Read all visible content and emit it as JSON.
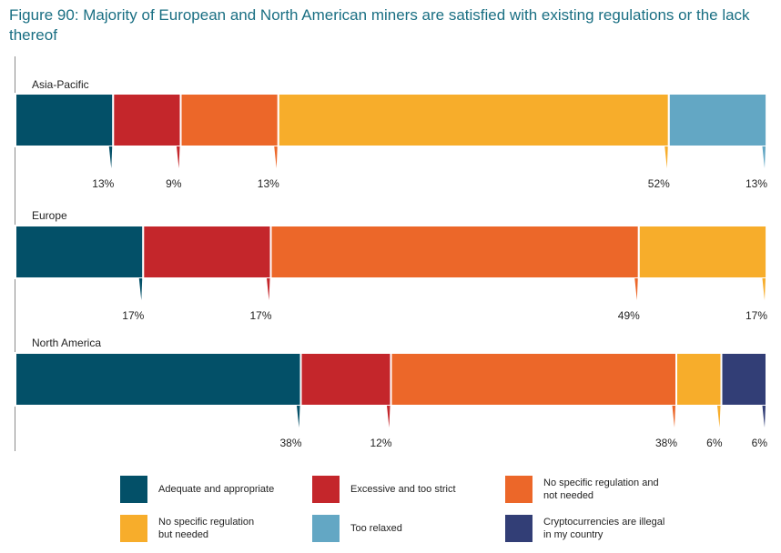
{
  "title": "Figure 90: Majority of European and North American miners are satisfied with existing regulations or the lack thereof",
  "chart_data": {
    "type": "bar",
    "orientation": "horizontal",
    "stacked": true,
    "xlim": [
      0,
      100
    ],
    "categories": [
      "Asia-Pacific",
      "Europe",
      "North America"
    ],
    "series": [
      {
        "name": "Adequate and appropriate",
        "color": "#035068",
        "values": [
          13,
          17,
          38
        ],
        "labels": [
          "13%",
          "17%",
          "38%"
        ]
      },
      {
        "name": "Excessive and too strict",
        "color": "#c4262b",
        "values": [
          9,
          17,
          12
        ],
        "labels": [
          "9%",
          "17%",
          "12%"
        ]
      },
      {
        "name": "No specific regulation and\nnot needed",
        "color": "#ec6729",
        "values": [
          13,
          49,
          38
        ],
        "labels": [
          "13%",
          "49%",
          "38%"
        ]
      },
      {
        "name": "No specific regulation\nbut needed",
        "color": "#f7ad2b",
        "values": [
          52,
          17,
          6
        ],
        "labels": [
          "52%",
          "17%",
          "6%"
        ]
      },
      {
        "name": "Too relaxed",
        "color": "#63a7c4",
        "values": [
          13,
          null,
          null
        ],
        "labels": [
          "13%",
          null,
          null
        ]
      },
      {
        "name": "Cryptocurrencies are illegal\nin my country",
        "color": "#323e76",
        "values": [
          null,
          null,
          6
        ],
        "labels": [
          null,
          null,
          "6%"
        ]
      }
    ],
    "legend_position": "bottom",
    "grid": false
  }
}
